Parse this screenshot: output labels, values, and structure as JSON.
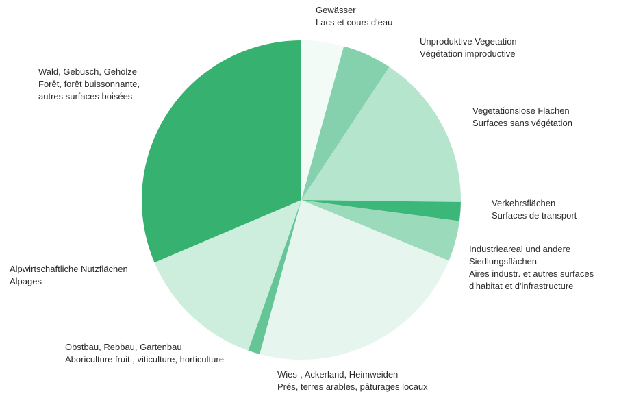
{
  "chart_data": {
    "type": "pie",
    "title": "",
    "slices": [
      {
        "lines": [
          "Gewässer",
          "Lacs et cours d'eau"
        ],
        "value": 4.3,
        "color": "#f3fbf7"
      },
      {
        "lines": [
          "Unproduktive Vegetation",
          "Végétation improductive"
        ],
        "value": 5.0,
        "color": "#86d1ad"
      },
      {
        "lines": [
          "Vegetationslose Flächen",
          "Surfaces sans végétation"
        ],
        "value": 15.9,
        "color": "#b6e5ce"
      },
      {
        "lines": [
          "Verkehrsflächen",
          "Surfaces de transport"
        ],
        "value": 1.9,
        "color": "#3cb77a"
      },
      {
        "lines": [
          "Industrieareal und andere",
          "Siedlungsflächen",
          "Aires industr. et autres surfaces",
          "d'habitat et d'infrastructure"
        ],
        "value": 4.1,
        "color": "#9cdabc"
      },
      {
        "lines": [
          "Wies-, Ackerland, Heimweiden",
          "Prés, terres arables, pâturages locaux"
        ],
        "value": 23.0,
        "color": "#e6f6ee"
      },
      {
        "lines": [
          "Obstbau, Rebbau, Gartenbau",
          "Aboriculture fruit., viticulture, horticulture"
        ],
        "value": 1.2,
        "color": "#66c596"
      },
      {
        "lines": [
          "Alpwirtschaftliche Nutzflächen",
          "Alpages"
        ],
        "value": 13.2,
        "color": "#cdeedd"
      },
      {
        "lines": [
          "Wald, Gebüsch, Gehölze",
          "Forêt, forêt buissonnante,",
          "autres surfaces boisées"
        ],
        "value": 31.4,
        "color": "#37b170"
      }
    ]
  }
}
